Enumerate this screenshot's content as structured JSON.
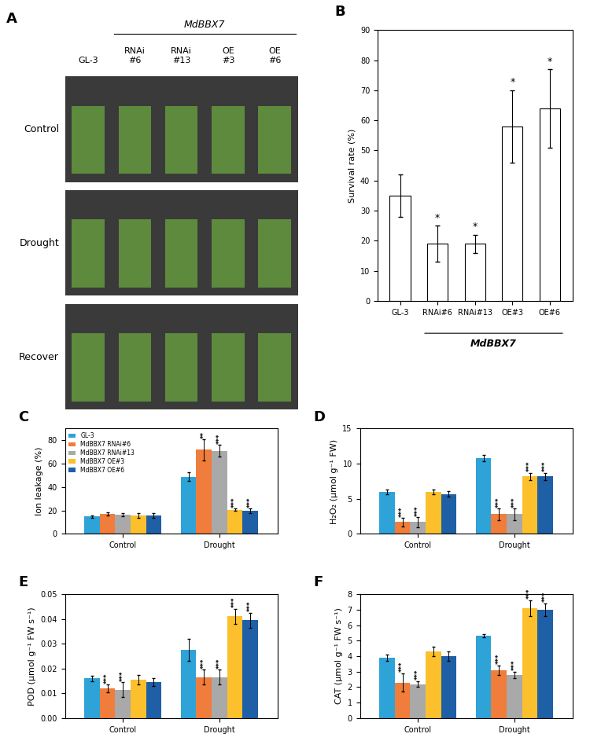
{
  "photo_panel": {
    "panel": "A",
    "gene": "MdBBX7",
    "columns": [
      "GL-3",
      "RNAi\n#6",
      "RNAi\n#13",
      "OE\n#3",
      "OE\n#6"
    ],
    "rows": [
      "Control",
      "Drought",
      "Recover"
    ]
  },
  "chart_data": [
    {
      "panel": "B",
      "type": "bar",
      "ylabel": "Survival rate (%)",
      "categories": [
        "GL-3",
        "RNAi#6",
        "RNAi#13",
        "OE#3",
        "OE#6"
      ],
      "group_label": "MdBBX7",
      "values": [
        35,
        19,
        19,
        58,
        64
      ],
      "errors": [
        7,
        6,
        3,
        12,
        13
      ],
      "significance": [
        null,
        "*",
        "*",
        "*",
        "*"
      ],
      "color": "white",
      "ylim": [
        0,
        90
      ],
      "yticks": [
        0,
        10,
        20,
        30,
        40,
        50,
        60,
        70,
        80,
        90
      ]
    },
    {
      "panel": "C",
      "type": "bar",
      "ylabel": "Ion leakage (%)",
      "legend": "upper left",
      "categories": [
        "Control",
        "Drought"
      ],
      "ylim": [
        0,
        90
      ],
      "yticks": [
        0,
        20,
        40,
        60,
        80
      ],
      "series": [
        {
          "name": "GL-3",
          "color": "#2ea3d8",
          "values": [
            15,
            49
          ],
          "errors": [
            1,
            4
          ],
          "significance": [
            null,
            null
          ]
        },
        {
          "name": "MdBBX7 RNAi#6",
          "color": "#f07d3b",
          "values": [
            17,
            72
          ],
          "errors": [
            1.5,
            9
          ],
          "significance": [
            null,
            "**"
          ]
        },
        {
          "name": "MdBBX7 RNAi#13",
          "color": "#a9a9a9",
          "values": [
            16.5,
            71
          ],
          "errors": [
            1.5,
            5
          ],
          "significance": [
            null,
            "***"
          ]
        },
        {
          "name": "MdBBX7 OE#3",
          "color": "#fcc02c",
          "values": [
            15.5,
            20.5
          ],
          "errors": [
            2,
            1
          ],
          "significance": [
            null,
            "***"
          ]
        },
        {
          "name": "MdBBX7 OE#6",
          "color": "#1f5fa6",
          "values": [
            15.5,
            19.5
          ],
          "errors": [
            2,
            2
          ],
          "significance": [
            null,
            "***"
          ]
        }
      ]
    },
    {
      "panel": "D",
      "type": "bar",
      "ylabel": "H₂O₂ (μmol g⁻¹ FW)",
      "categories": [
        "Control",
        "Drought"
      ],
      "ylim": [
        0,
        15
      ],
      "yticks": [
        0,
        5,
        10,
        15
      ],
      "series": [
        {
          "name": "GL-3",
          "color": "#2ea3d8",
          "values": [
            6,
            10.8
          ],
          "errors": [
            0.3,
            0.5
          ],
          "significance": [
            null,
            null
          ]
        },
        {
          "name": "MdBBX7 RNAi#6",
          "color": "#f07d3b",
          "values": [
            1.7,
            2.8
          ],
          "errors": [
            0.6,
            0.8
          ],
          "significance": [
            "***",
            "***"
          ]
        },
        {
          "name": "MdBBX7 RNAi#13",
          "color": "#a9a9a9",
          "values": [
            1.7,
            2.8
          ],
          "errors": [
            0.7,
            0.8
          ],
          "significance": [
            "***",
            "***"
          ]
        },
        {
          "name": "MdBBX7 OE#3",
          "color": "#fcc02c",
          "values": [
            6,
            8.2
          ],
          "errors": [
            0.3,
            0.5
          ],
          "significance": [
            null,
            "***"
          ]
        },
        {
          "name": "MdBBX7 OE#6",
          "color": "#1f5fa6",
          "values": [
            5.7,
            8.2
          ],
          "errors": [
            0.4,
            0.5
          ],
          "significance": [
            null,
            "***"
          ]
        }
      ]
    },
    {
      "panel": "E",
      "type": "bar",
      "ylabel": "POD (μmol g⁻¹ FW s⁻¹)",
      "categories": [
        "Control",
        "Drought"
      ],
      "ylim": [
        0,
        0.05
      ],
      "yticks": [
        {
          "value": 0,
          "label": "0.00"
        },
        {
          "value": 0.01,
          "label": "0.01"
        },
        {
          "value": 0.02,
          "label": "0.02"
        },
        {
          "value": 0.03,
          "label": "0.03"
        },
        {
          "value": 0.04,
          "label": "0.04"
        },
        {
          "value": 0.05,
          "label": "0.05"
        }
      ],
      "series": [
        {
          "name": "GL-3",
          "color": "#2ea3d8",
          "values": [
            0.016,
            0.0275
          ],
          "errors": [
            0.001,
            0.0045
          ],
          "significance": [
            null,
            null
          ]
        },
        {
          "name": "MdBBX7 RNAi#6",
          "color": "#f07d3b",
          "values": [
            0.012,
            0.0165
          ],
          "errors": [
            0.0015,
            0.003
          ],
          "significance": [
            "***",
            "***"
          ]
        },
        {
          "name": "MdBBX7 RNAi#13",
          "color": "#a9a9a9",
          "values": [
            0.0115,
            0.0165
          ],
          "errors": [
            0.003,
            0.003
          ],
          "significance": [
            "***",
            "***"
          ]
        },
        {
          "name": "MdBBX7 OE#3",
          "color": "#fcc02c",
          "values": [
            0.0155,
            0.041
          ],
          "errors": [
            0.002,
            0.003
          ],
          "significance": [
            null,
            "***"
          ]
        },
        {
          "name": "MdBBX7 OE#6",
          "color": "#1f5fa6",
          "values": [
            0.0145,
            0.0395
          ],
          "errors": [
            0.0015,
            0.003
          ],
          "significance": [
            null,
            "***"
          ]
        }
      ]
    },
    {
      "panel": "F",
      "type": "bar",
      "ylabel": "CAT (μmol g⁻¹ FW s⁻¹)",
      "categories": [
        "Control",
        "Drought"
      ],
      "ylim": [
        0,
        8
      ],
      "yticks": [
        0,
        1,
        2,
        3,
        4,
        5,
        6,
        7,
        8
      ],
      "series": [
        {
          "name": "GL-3",
          "color": "#2ea3d8",
          "values": [
            3.9,
            5.3
          ],
          "errors": [
            0.2,
            0.1
          ],
          "significance": [
            null,
            null
          ]
        },
        {
          "name": "MdBBX7 RNAi#6",
          "color": "#f07d3b",
          "values": [
            2.3,
            3.1
          ],
          "errors": [
            0.6,
            0.3
          ],
          "significance": [
            "***",
            "***"
          ]
        },
        {
          "name": "MdBBX7 RNAi#13",
          "color": "#a9a9a9",
          "values": [
            2.2,
            2.8
          ],
          "errors": [
            0.2,
            0.2
          ],
          "significance": [
            "***",
            "***"
          ]
        },
        {
          "name": "MdBBX7 OE#3",
          "color": "#fcc02c",
          "values": [
            4.3,
            7.1
          ],
          "errors": [
            0.3,
            0.5
          ],
          "significance": [
            null,
            "***"
          ]
        },
        {
          "name": "MdBBX7 OE#6",
          "color": "#1f5fa6",
          "values": [
            4.0,
            7.0
          ],
          "errors": [
            0.3,
            0.4
          ],
          "significance": [
            null,
            "***"
          ]
        }
      ]
    }
  ]
}
